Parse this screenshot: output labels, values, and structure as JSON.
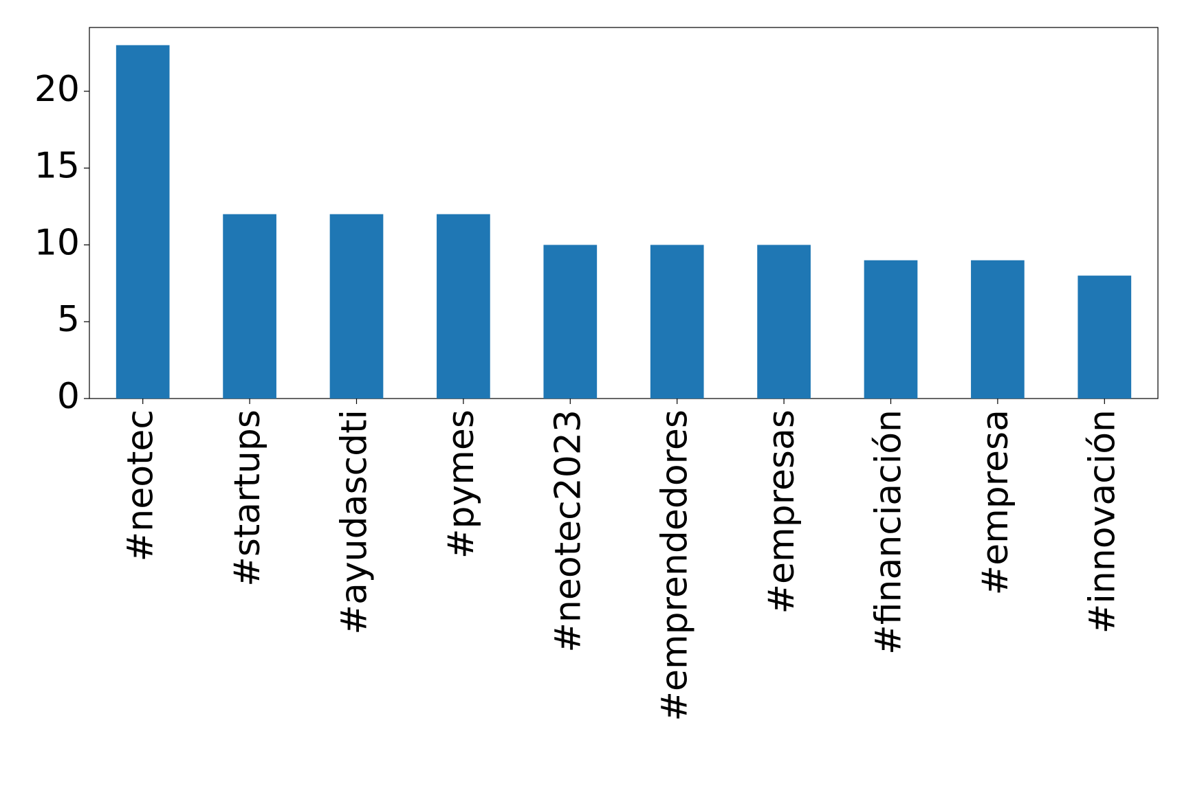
{
  "chart_data": {
    "type": "bar",
    "categories": [
      "#neotec",
      "#startups",
      "#ayudascdti",
      "#pymes",
      "#neotec2023",
      "#emprendedores",
      "#empresas",
      "#financiación",
      "#empresa",
      "#innovación"
    ],
    "values": [
      23,
      12,
      12,
      12,
      10,
      10,
      10,
      9,
      9,
      8
    ],
    "color": "#1f77b4",
    "ylim": [
      0,
      24.15
    ],
    "yticks": [
      0,
      5,
      10,
      15,
      20
    ],
    "grid": false
  }
}
